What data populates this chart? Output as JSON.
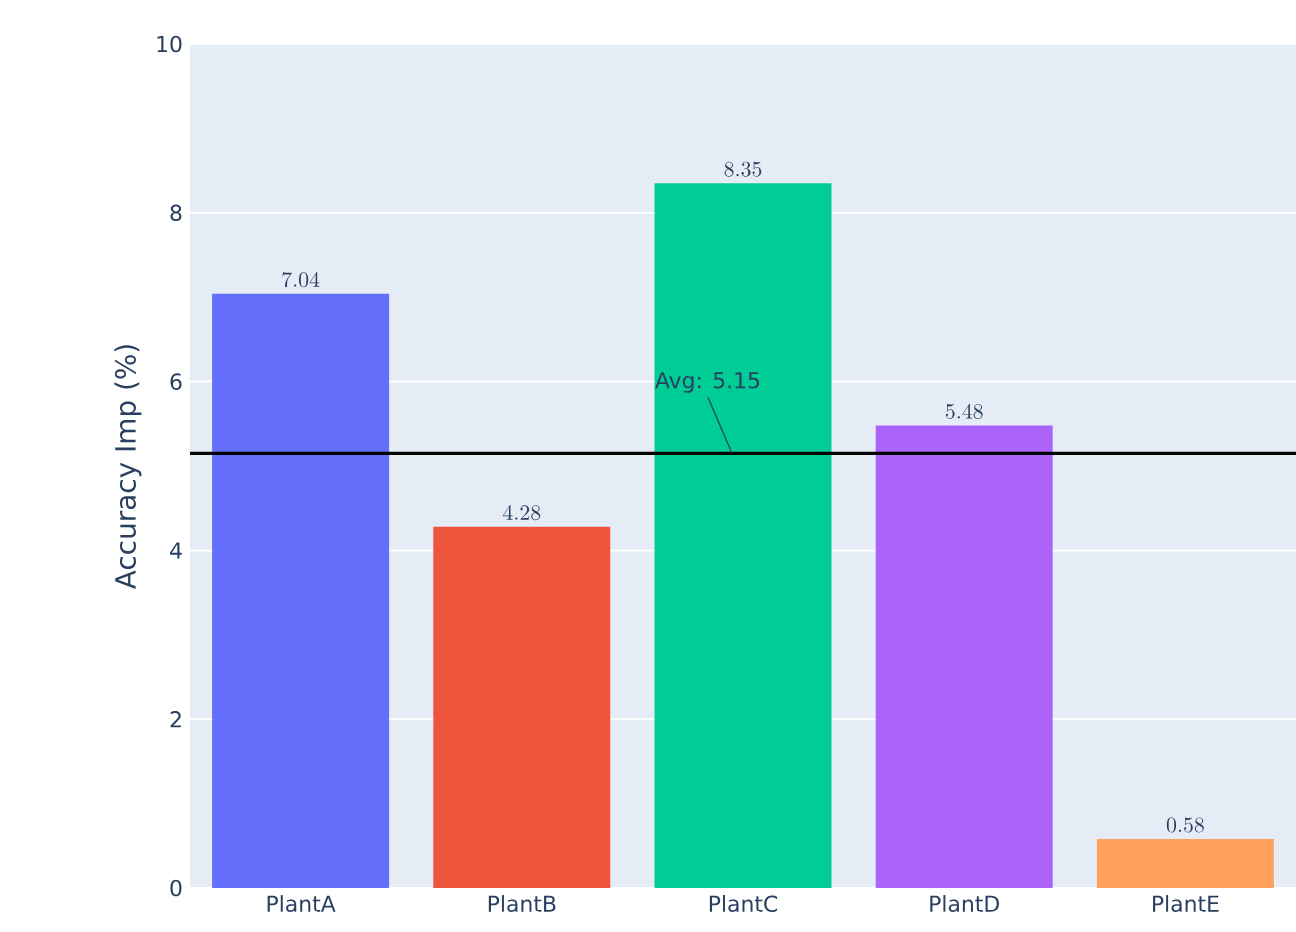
{
  "chart_data": {
    "type": "bar",
    "ylabel": "Accuracy Imp (%)",
    "categories": [
      "PlantA",
      "PlantB",
      "PlantC",
      "PlantD",
      "PlantE"
    ],
    "values": [
      7.04,
      4.28,
      8.35,
      5.48,
      0.58
    ],
    "colors": [
      "#636efa",
      "#ef553b",
      "#00cc96",
      "#ab63fa",
      "#ffa15a"
    ],
    "ylim": [
      0,
      10
    ],
    "yticks": [
      0,
      2,
      4,
      6,
      8,
      10
    ],
    "grid": "y",
    "data_labels": true,
    "ref_lines": [
      {
        "axis": "y",
        "value": 5.15,
        "label": "Avg: 5.15",
        "color": "#000000"
      }
    ]
  }
}
